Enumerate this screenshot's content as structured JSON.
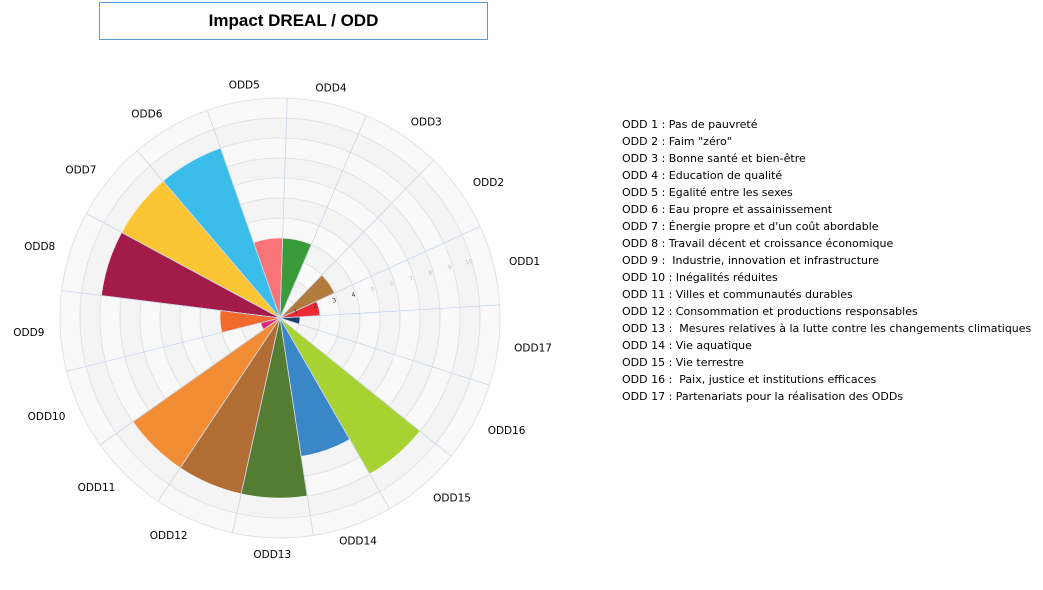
{
  "chart_data": {
    "type": "polar-area",
    "title": "Impact DREAL / ODD",
    "categories": [
      "ODD1",
      "ODD2",
      "ODD3",
      "ODD4",
      "ODD5",
      "ODD6",
      "ODD7",
      "ODD8",
      "ODD9",
      "ODD10",
      "ODD11",
      "ODD12",
      "ODD13",
      "ODD14",
      "ODD15",
      "ODD16",
      "ODD17"
    ],
    "values": [
      2,
      3,
      0,
      4,
      4,
      9,
      9,
      9,
      3,
      1,
      9,
      9,
      9,
      7,
      9,
      0,
      1
    ],
    "colors": [
      "#ef2836",
      "#b07b3c",
      "#4aa84b",
      "#3a9b3a",
      "#f87476",
      "#3bbde9",
      "#fcc533",
      "#a31b48",
      "#f26a2e",
      "#df2c81",
      "#f28d35",
      "#b16d33",
      "#547d33",
      "#3a87c8",
      "#a8d232",
      "#265d8e",
      "#1c3f6e"
    ],
    "tick_labels": [
      "1",
      "2",
      "3",
      "4",
      "5",
      "6",
      "7",
      "8",
      "9",
      "10"
    ],
    "rmax": 11,
    "grid": true,
    "legend_position": "right",
    "legend": [
      "ODD 1 : Pas de pauvreté",
      "ODD 2 : Faim \"zéro\"",
      "ODD 3 : Bonne santé et bien-être",
      "ODD 4 : Education de qualité",
      "ODD 5 : Egalité entre les sexes",
      "ODD 6 : Eau propre et assainissement",
      "ODD 7 : Énergie propre et d'un coût abordable",
      "ODD 8 : Travail décent et croissance économique",
      "ODD 9 :  Industrie, innovation et infrastructure",
      "ODD 10 : Inégalités réduites",
      "ODD 11 : Villes et communautés durables",
      "ODD 12 : Consommation et productions responsables",
      "ODD 13 :  Mesures relatives à la lutte contre les changements climatiques",
      "ODD 14 : Vie aquatique",
      "ODD 15 : Vie terrestre",
      "ODD 16 :  Paix, justice et institutions efficaces",
      "ODD 17 : Partenariats pour la réalisation des ODDs"
    ]
  }
}
